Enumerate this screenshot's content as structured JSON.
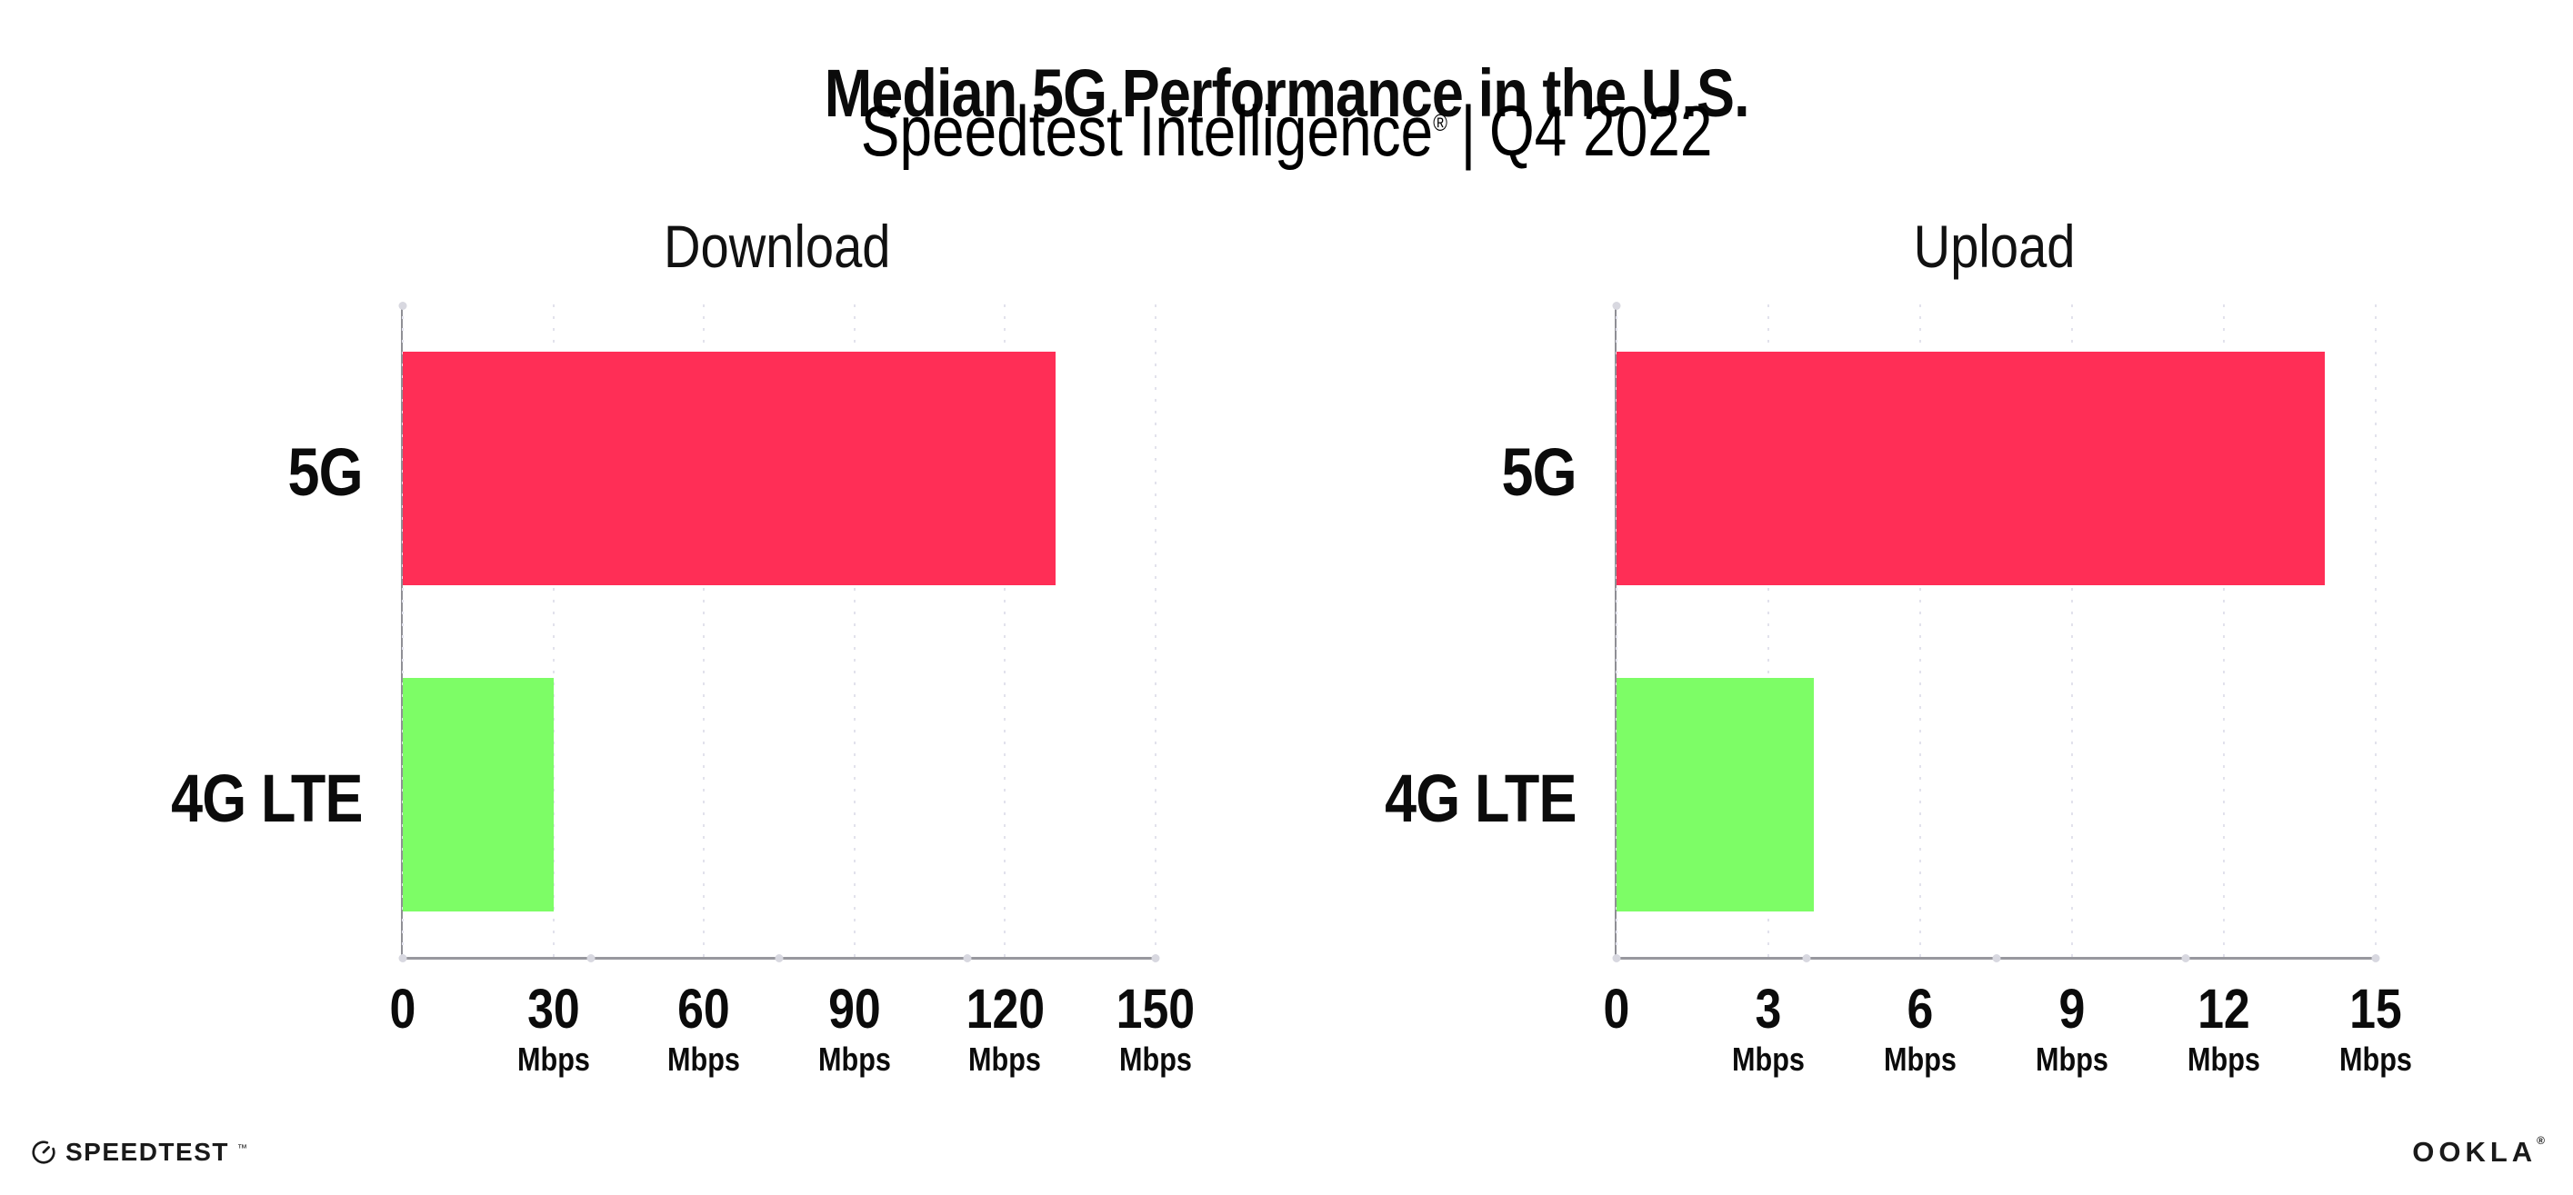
{
  "page": {
    "title": "Median 5G Performance in the U.S.",
    "subtitle": {
      "brand": "Speedtest Intelligence",
      "reg": "®",
      "separator": "|",
      "period": "Q4 2022"
    }
  },
  "chart_data": [
    {
      "type": "bar",
      "orientation": "horizontal",
      "title": "Download",
      "categories": [
        "5G",
        "4G LTE"
      ],
      "values": [
        130,
        30
      ],
      "unit": "Mbps",
      "xlim": [
        0,
        150
      ],
      "xticks": [
        0,
        30,
        60,
        90,
        120,
        150
      ],
      "bar_colors": [
        "#FF2E56",
        "#7DFD66"
      ],
      "grid": "dotted-vertical",
      "legend": "none"
    },
    {
      "type": "bar",
      "orientation": "horizontal",
      "title": "Upload",
      "categories": [
        "5G",
        "4G LTE"
      ],
      "values": [
        14,
        3.9
      ],
      "unit": "Mbps",
      "xlim": [
        0,
        15
      ],
      "xticks": [
        0,
        3,
        6,
        9,
        12,
        15
      ],
      "bar_colors": [
        "#FF2E56",
        "#7DFD66"
      ],
      "grid": "dotted-vertical",
      "legend": "none"
    }
  ],
  "colors": {
    "bar_5g": "#FF2E56",
    "bar_4g_lte": "#7DFD66",
    "axis_line": "#98989e",
    "grid_dot": "#e2e2ec",
    "axis_tick_dot": "#d8d8e0",
    "text": "#0b0b0b"
  },
  "footer": {
    "speedtest": {
      "icon": "speedtest-gauge-icon",
      "label": "SPEEDTEST",
      "tm": "™"
    },
    "ookla": {
      "label": "OOKLA",
      "reg": "®"
    }
  }
}
